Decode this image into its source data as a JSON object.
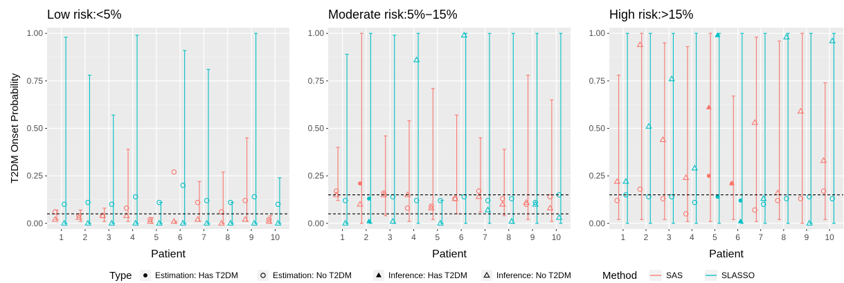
{
  "legend": {
    "type_title": "Type",
    "type_items": [
      {
        "label": "Estimation: Has T2DM",
        "shape": "filled-circle"
      },
      {
        "label": "Estimation: No T2DM",
        "shape": "open-circle"
      },
      {
        "label": "Inference: Has T2DM",
        "shape": "filled-triangle"
      },
      {
        "label": "Inference: No T2DM",
        "shape": "open-triangle"
      }
    ],
    "method_title": "Method",
    "method_items": [
      {
        "label": "SAS",
        "color": "#F8766D"
      },
      {
        "label": "SLASSO",
        "color": "#00BFC4"
      }
    ]
  },
  "chart_data": [
    {
      "type": "errorbar",
      "title": "Low risk:<5%",
      "xlabel": "Patient",
      "ylabel": "T2DM Onset Probability",
      "categories": [
        "1",
        "2",
        "3",
        "4",
        "5",
        "6",
        "7",
        "8",
        "9",
        "10"
      ],
      "ylim": [
        -0.03,
        1.03
      ],
      "yticks": [
        "0.00",
        "0.25",
        "0.50",
        "0.75",
        "1.00"
      ],
      "threshold_lines": [
        0.05
      ],
      "series": [
        {
          "method": "SAS",
          "color": "#F8766D",
          "intervals": [
            [
              0.02,
              0.07
            ],
            [
              0.01,
              0.07
            ],
            [
              0.01,
              0.08
            ],
            [
              0.01,
              0.39
            ],
            [
              0.0,
              0.03
            ],
            [
              0.0,
              0.01
            ],
            [
              0.01,
              0.22
            ],
            [
              0.0,
              0.27
            ],
            [
              0.01,
              0.45
            ],
            [
              0.0,
              0.04
            ]
          ],
          "estimation": [
            0.06,
            0.04,
            0.04,
            0.08,
            0.02,
            0.27,
            0.11,
            0.06,
            0.12,
            0.02
          ],
          "estimation_has_t2dm": [
            false,
            false,
            false,
            false,
            false,
            false,
            false,
            false,
            false,
            false
          ],
          "inference": [
            0.02,
            0.03,
            0.04,
            0.04,
            0.01,
            0.01,
            0.02,
            0.0,
            0.02,
            0.01
          ],
          "inference_has_t2dm": [
            false,
            false,
            false,
            false,
            false,
            false,
            false,
            false,
            false,
            false
          ]
        },
        {
          "method": "SLASSO",
          "color": "#00BFC4",
          "intervals": [
            [
              0.0,
              0.98
            ],
            [
              0.0,
              0.78
            ],
            [
              0.0,
              0.57
            ],
            [
              0.0,
              0.99
            ],
            [
              0.0,
              0.11
            ],
            [
              0.0,
              0.91
            ],
            [
              0.0,
              0.81
            ],
            [
              0.0,
              0.11
            ],
            [
              0.0,
              1.0
            ],
            [
              0.0,
              0.24
            ]
          ],
          "estimation": [
            0.1,
            0.11,
            0.1,
            0.14,
            0.11,
            0.2,
            0.12,
            0.11,
            0.14,
            0.1
          ],
          "estimation_has_t2dm": [
            false,
            false,
            false,
            false,
            false,
            false,
            false,
            false,
            false,
            false
          ],
          "inference": [
            0.0,
            0.0,
            0.0,
            0.0,
            0.0,
            0.0,
            0.0,
            0.0,
            0.0,
            0.0
          ],
          "inference_has_t2dm": [
            false,
            false,
            false,
            false,
            false,
            false,
            false,
            false,
            false,
            false
          ]
        }
      ]
    },
    {
      "type": "errorbar",
      "title": "Moderate risk:5%−15%",
      "xlabel": "Patient",
      "ylabel": "",
      "categories": [
        "1",
        "2",
        "3",
        "4",
        "5",
        "6",
        "7",
        "8",
        "9",
        "10"
      ],
      "ylim": [
        -0.03,
        1.03
      ],
      "yticks": [
        "0.00",
        "0.25",
        "0.50",
        "0.75",
        "1.00"
      ],
      "threshold_lines": [
        0.05,
        0.15
      ],
      "series": [
        {
          "method": "SAS",
          "color": "#F8766D",
          "intervals": [
            [
              0.12,
              0.4
            ],
            [
              0.0,
              1.0
            ],
            [
              0.04,
              0.46
            ],
            [
              0.01,
              0.54
            ],
            [
              0.02,
              0.71
            ],
            [
              0.05,
              0.57
            ],
            [
              0.06,
              0.45
            ],
            [
              0.04,
              0.39
            ],
            [
              0.02,
              0.78
            ],
            [
              0.01,
              0.65
            ]
          ],
          "estimation": [
            0.17,
            0.21,
            0.16,
            0.08,
            0.09,
            0.13,
            0.17,
            0.13,
            0.1,
            0.14
          ],
          "estimation_has_t2dm": [
            false,
            true,
            false,
            false,
            false,
            false,
            false,
            false,
            false,
            false
          ],
          "inference": [
            0.15,
            0.1,
            0.15,
            0.15,
            0.08,
            0.13,
            0.14,
            0.1,
            0.11,
            0.08
          ],
          "inference_has_t2dm": [
            false,
            false,
            false,
            false,
            false,
            false,
            false,
            false,
            false,
            false
          ]
        },
        {
          "method": "SLASSO",
          "color": "#00BFC4",
          "intervals": [
            [
              0.0,
              0.89
            ],
            [
              0.0,
              1.0
            ],
            [
              0.0,
              0.99
            ],
            [
              0.0,
              1.0
            ],
            [
              0.0,
              0.12
            ],
            [
              0.0,
              1.0
            ],
            [
              0.0,
              1.0
            ],
            [
              0.0,
              1.0
            ],
            [
              0.0,
              1.0
            ],
            [
              0.0,
              1.0
            ]
          ],
          "estimation": [
            0.12,
            0.13,
            0.14,
            0.12,
            0.12,
            0.14,
            0.12,
            0.13,
            0.11,
            0.15
          ],
          "estimation_has_t2dm": [
            false,
            true,
            false,
            false,
            false,
            false,
            false,
            false,
            false,
            false
          ],
          "inference": [
            0.0,
            0.01,
            0.01,
            0.86,
            0.0,
            0.99,
            0.07,
            0.01,
            0.1,
            0.03
          ],
          "inference_has_t2dm": [
            false,
            true,
            false,
            false,
            false,
            false,
            false,
            false,
            false,
            false
          ]
        }
      ]
    },
    {
      "type": "errorbar",
      "title": "High risk:>15%",
      "xlabel": "Patient",
      "ylabel": "",
      "categories": [
        "1",
        "2",
        "3",
        "4",
        "5",
        "6",
        "7",
        "8",
        "9",
        "10"
      ],
      "ylim": [
        -0.03,
        1.03
      ],
      "yticks": [
        "0.00",
        "0.25",
        "0.50",
        "0.75",
        "1.00"
      ],
      "threshold_lines": [
        0.15
      ],
      "series": [
        {
          "method": "SAS",
          "color": "#F8766D",
          "intervals": [
            [
              0.02,
              0.78
            ],
            [
              0.02,
              1.0
            ],
            [
              0.02,
              0.95
            ],
            [
              0.01,
              0.93
            ],
            [
              0.01,
              1.0
            ],
            [
              0.02,
              0.67
            ],
            [
              0.01,
              0.98
            ],
            [
              0.02,
              0.96
            ],
            [
              0.0,
              1.0
            ],
            [
              0.02,
              0.74
            ]
          ],
          "estimation": [
            0.12,
            0.18,
            0.13,
            0.05,
            0.25,
            0.21,
            0.07,
            0.12,
            0.13,
            0.17
          ],
          "estimation_has_t2dm": [
            false,
            false,
            false,
            false,
            true,
            true,
            false,
            false,
            false,
            false
          ],
          "inference": [
            0.22,
            0.94,
            0.44,
            0.24,
            0.61,
            0.21,
            0.53,
            0.16,
            0.59,
            0.33
          ],
          "inference_has_t2dm": [
            false,
            false,
            false,
            false,
            true,
            true,
            false,
            false,
            false,
            false
          ]
        },
        {
          "method": "SLASSO",
          "color": "#00BFC4",
          "intervals": [
            [
              0.0,
              1.0
            ],
            [
              0.0,
              1.0
            ],
            [
              0.0,
              1.0
            ],
            [
              0.0,
              1.0
            ],
            [
              0.0,
              1.0
            ],
            [
              0.0,
              1.0
            ],
            [
              0.0,
              1.0
            ],
            [
              0.0,
              1.0
            ],
            [
              0.0,
              1.0
            ],
            [
              0.0,
              1.0
            ]
          ],
          "estimation": [
            0.15,
            0.14,
            0.14,
            0.11,
            0.14,
            0.12,
            0.1,
            0.13,
            0.14,
            0.13
          ],
          "estimation_has_t2dm": [
            false,
            false,
            false,
            false,
            true,
            true,
            false,
            false,
            false,
            false
          ],
          "inference": [
            0.22,
            0.51,
            0.76,
            0.29,
            0.99,
            0.01,
            0.13,
            0.98,
            0.0,
            0.96
          ],
          "inference_has_t2dm": [
            false,
            false,
            false,
            false,
            true,
            true,
            false,
            false,
            false,
            false
          ]
        }
      ]
    }
  ]
}
